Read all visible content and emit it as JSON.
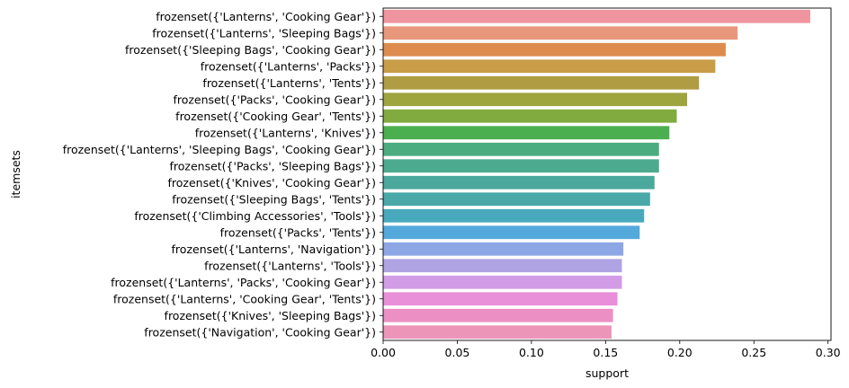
{
  "chart_data": {
    "type": "bar",
    "orientation": "horizontal",
    "title": "",
    "xlabel": "support",
    "ylabel": "itemsets",
    "xlim": [
      0,
      0.302
    ],
    "xticks": [
      "0.00",
      "0.05",
      "0.10",
      "0.15",
      "0.20",
      "0.25",
      "0.30"
    ],
    "xtick_values": [
      0,
      0.05,
      0.1,
      0.15,
      0.2,
      0.25,
      0.3
    ],
    "grid": false,
    "legend": "none",
    "categories": [
      "frozenset({'Lanterns', 'Cooking Gear'})",
      "frozenset({'Lanterns', 'Sleeping Bags'})",
      "frozenset({'Sleeping Bags', 'Cooking Gear'})",
      "frozenset({'Lanterns', 'Packs'})",
      "frozenset({'Lanterns', 'Tents'})",
      "frozenset({'Packs', 'Cooking Gear'})",
      "frozenset({'Cooking Gear', 'Tents'})",
      "frozenset({'Lanterns', 'Knives'})",
      "frozenset({'Lanterns', 'Sleeping Bags', 'Cooking Gear'})",
      "frozenset({'Packs', 'Sleeping Bags'})",
      "frozenset({'Knives', 'Cooking Gear'})",
      "frozenset({'Sleeping Bags', 'Tents'})",
      "frozenset({'Climbing Accessories', 'Tools'})",
      "frozenset({'Packs', 'Tents'})",
      "frozenset({'Lanterns', 'Navigation'})",
      "frozenset({'Lanterns', 'Tools'})",
      "frozenset({'Lanterns', 'Packs', 'Cooking Gear'})",
      "frozenset({'Lanterns', 'Cooking Gear', 'Tents'})",
      "frozenset({'Knives', 'Sleeping Bags'})",
      "frozenset({'Navigation', 'Cooking Gear'})"
    ],
    "values": [
      0.288,
      0.239,
      0.231,
      0.224,
      0.213,
      0.205,
      0.198,
      0.193,
      0.186,
      0.186,
      0.183,
      0.18,
      0.176,
      0.173,
      0.162,
      0.161,
      0.161,
      0.158,
      0.155,
      0.154
    ],
    "colors": [
      "#f0949f",
      "#e8977c",
      "#de8c4e",
      "#c99d47",
      "#b09c42",
      "#9ea53e",
      "#82ab3f",
      "#4caf4f",
      "#4bac7f",
      "#4cab8e",
      "#4ba89c",
      "#4aa8a9",
      "#48a9bc",
      "#54a9dc",
      "#8da7e5",
      "#b0a3e4",
      "#d29ce6",
      "#e98ed9",
      "#ec8fc4",
      "#ec95b8"
    ]
  }
}
